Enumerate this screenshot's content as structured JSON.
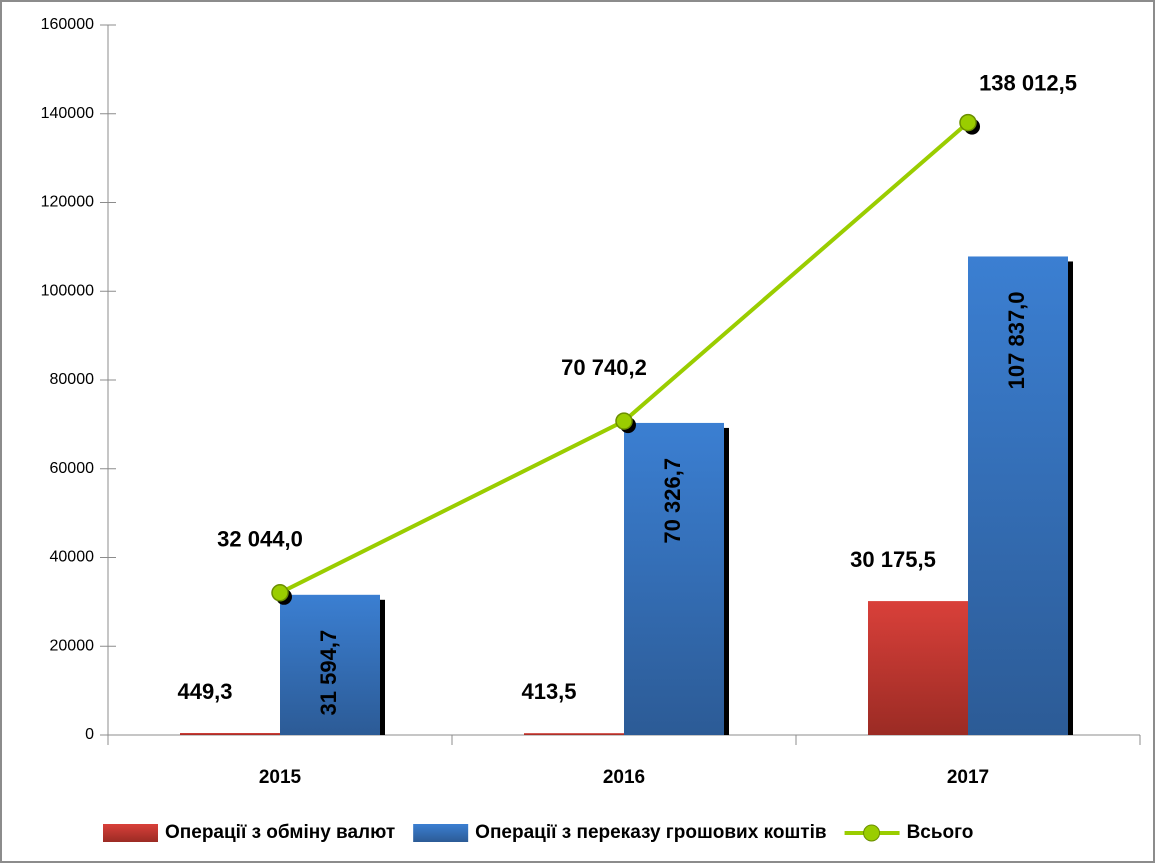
{
  "chart_data": {
    "type": "bar",
    "categories": [
      "2015",
      "2016",
      "2017"
    ],
    "series": [
      {
        "name": "Операції з обміну валют",
        "type": "bar",
        "color": "#c0504d",
        "values": [
          449.3,
          413.5,
          30175.5
        ],
        "value_labels": [
          "449,3",
          "413,5",
          "30 175,5"
        ]
      },
      {
        "name": "Операції з переказу грошових коштів",
        "type": "bar",
        "color": "#3a78c9",
        "values": [
          31594.7,
          70326.7,
          107837.0
        ],
        "value_labels": [
          "31 594,7",
          "70 326,7",
          "107 837,0"
        ]
      },
      {
        "name": "Всього",
        "type": "line",
        "color": "#9acd00",
        "values": [
          32044.0,
          70740.2,
          138012.5
        ],
        "value_labels": [
          "32 044,0",
          "70 740,2",
          "138 012,5"
        ]
      }
    ],
    "ylim": [
      0,
      160000
    ],
    "yticks": [
      0,
      20000,
      40000,
      60000,
      80000,
      100000,
      120000,
      140000,
      160000
    ],
    "legend": "bottom"
  }
}
